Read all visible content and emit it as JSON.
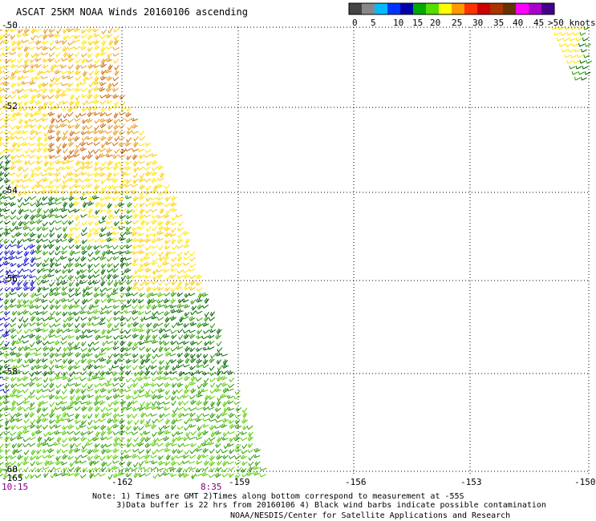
{
  "title": "ASCAT 25KM NOAA Winds 20160106 ascending",
  "legend": {
    "colors": [
      "#444444",
      "#888888",
      "#00bbff",
      "#0033ff",
      "#0000aa",
      "#00aa00",
      "#55dd00",
      "#ffff00",
      "#ff9900",
      "#ff3300",
      "#cc0000",
      "#aa3300",
      "#663300",
      "#ff00ff",
      "#aa00cc",
      "#440088"
    ],
    "tick_labels": [
      "0",
      "5",
      "10",
      "15",
      "20",
      "25",
      "30",
      "35",
      "40",
      "45",
      ">50 knots"
    ]
  },
  "map": {
    "lat_labels": [
      "-50",
      "-52",
      "-54",
      "-56",
      "-58",
      "-60"
    ],
    "lon_labels": [
      "-165",
      "-162",
      "-159",
      "-156",
      "-153",
      "-150"
    ],
    "grid": "dotted"
  },
  "times": [
    "10:15",
    "8:35"
  ],
  "note": "Note: 1) Times are GMT 2)Times along bottom correspond to measurement at -55S\n     3)Data buffer is 22 hrs from 20160106 4) Black wind barbs indicate possible contamination",
  "credit": "NOAA/NESDIS/Center for Satellite Applications and Research",
  "swath_colors": {
    "blue": "#1010cc",
    "dark_green": "#006600",
    "green": "#2a9a00",
    "light_green": "#55cc00",
    "yellow": "#ffe600",
    "gold": "#ffcc00",
    "orange": "#e6991a",
    "dark_orange": "#cc6611"
  }
}
